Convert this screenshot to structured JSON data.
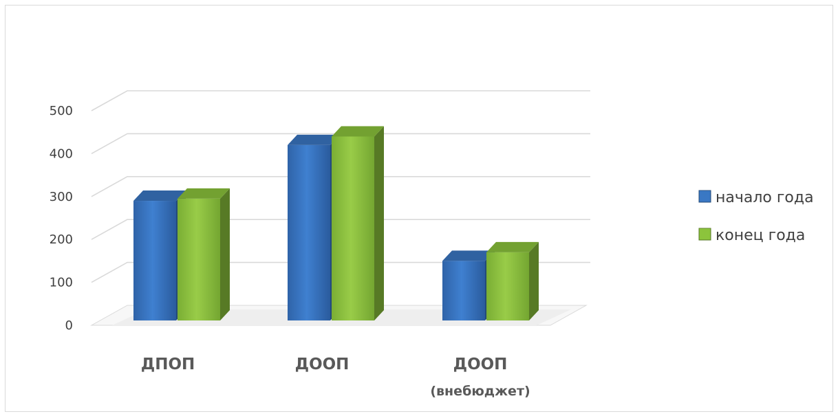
{
  "chart_data": {
    "type": "bar",
    "categories": [
      {
        "line1": "ДПОП",
        "line2": ""
      },
      {
        "line1": "ДООП",
        "line2": ""
      },
      {
        "line1": "ДООП",
        "line2": "(внебюджет)"
      }
    ],
    "series": [
      {
        "name": "начало года",
        "values": [
          290,
          420,
          150
        ],
        "color": "#3a78c4"
      },
      {
        "name": "конец года",
        "values": [
          295,
          440,
          170
        ],
        "color": "#8cc43c"
      }
    ],
    "y_ticks": [
      "0",
      "100",
      "200",
      "300",
      "400",
      "500"
    ],
    "ylim": [
      0,
      500
    ],
    "grid": true,
    "legend_position": "right"
  }
}
